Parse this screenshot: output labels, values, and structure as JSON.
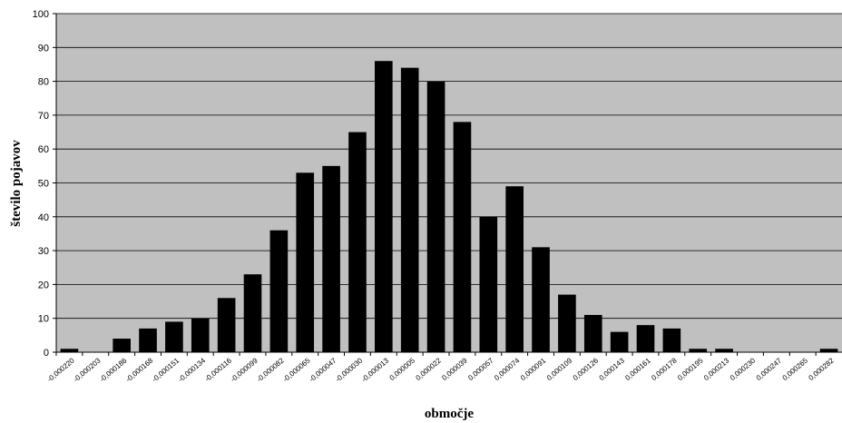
{
  "chart_data": {
    "type": "bar",
    "title": "",
    "xlabel": "območje",
    "ylabel": "število pojavov",
    "ylim": [
      0,
      100
    ],
    "ytick_step": 10,
    "grid": true,
    "legend": "none",
    "colors": {
      "plot_background": "#c0c0c0",
      "bar": "#000000",
      "gridline": "#000000"
    },
    "categories": [
      "-0,000220",
      "-0,000203",
      "-0,000186",
      "-0,000168",
      "-0,000151",
      "-0,000134",
      "-0,000116",
      "-0,000099",
      "-0,000082",
      "-0,000065",
      "-0,000047",
      "-0,000030",
      "-0,000013",
      "0,000005",
      "0,000022",
      "0,000039",
      "0,000057",
      "0,000074",
      "0,000091",
      "0,000109",
      "0,000126",
      "0,000143",
      "0,000161",
      "0,000178",
      "0,000195",
      "0,000213",
      "0,000230",
      "0,000247",
      "0,000265",
      "0,000282"
    ],
    "values": [
      1,
      0,
      4,
      7,
      9,
      10,
      16,
      23,
      36,
      53,
      55,
      65,
      86,
      84,
      80,
      68,
      40,
      49,
      31,
      17,
      11,
      6,
      8,
      7,
      1,
      1,
      0,
      0,
      0,
      1
    ]
  }
}
